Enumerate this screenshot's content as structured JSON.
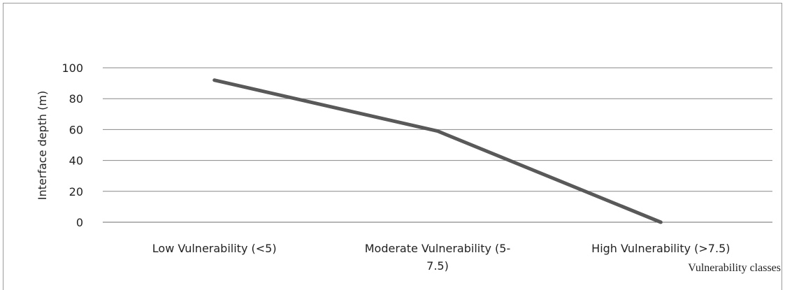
{
  "chart_data": {
    "type": "line",
    "categories": [
      "Low Vulnerability (<5)",
      "Moderate Vulnerability (5-7.5)",
      "High Vulnerability (>7.5)"
    ],
    "category_label_lines": [
      [
        "Low Vulnerability (<5)"
      ],
      [
        "Moderate Vulnerability (5-",
        "7.5)"
      ],
      [
        "High Vulnerability (>7.5)"
      ]
    ],
    "series": [
      {
        "values": [
          92,
          59,
          0
        ]
      }
    ],
    "xlabel": "Vulnerability classes",
    "ylabel": "Interface depth (m)",
    "ylim": [
      0,
      100
    ],
    "yticks": [
      0,
      20,
      40,
      60,
      80,
      100
    ],
    "grid": true,
    "colors": {
      "line": "#595959",
      "grid": "#878787",
      "text": "#222222"
    }
  }
}
